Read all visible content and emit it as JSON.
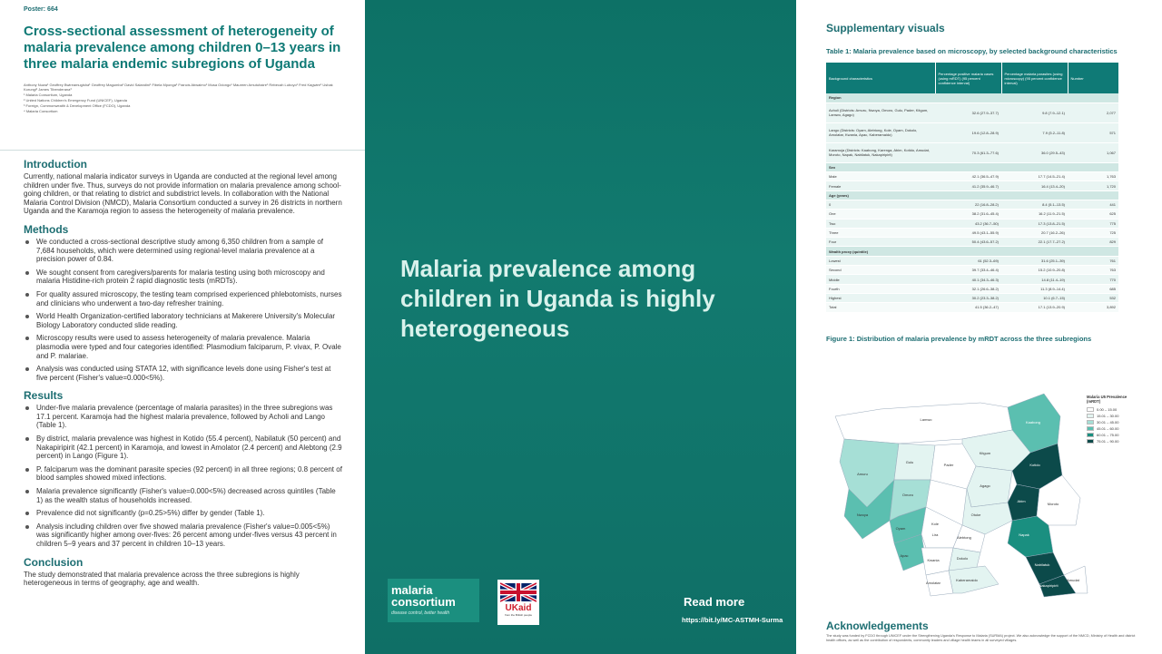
{
  "poster_number": "Poster: 664",
  "title": "Cross-sectional assessment of heterogeneity of malaria prevalence among children 0–13 years in three malaria endemic subregions of Uganda",
  "authors": "Anthony Nuwa¹ Geoffrey Bwireamugisha¹ Geoffrey Magumba¹ David Salandini¹ Fibela Mponga¹ Francis Abwaimo¹ Musa Odongo¹ Maureen Amutuhaire¹ Rebecah Luboyo¹ Fred Kagwire¹ Ushak Korungi² James Tibenderana³",
  "affiliations": [
    "¹ Malaria Consortium, Uganda",
    "² United Nations Children's Emergency Fund (UNICEF), Uganda",
    "³ Foreign, Commonwealth & Development Office (FCDO), Uganda",
    "⁴ Malaria Consortium"
  ],
  "introduction": {
    "heading": "Introduction",
    "text": "Currently, national malaria indicator surveys in Uganda are conducted at the regional level among children under five. Thus, surveys do not provide information on malaria prevalence among school-going children, or that relating to district and subdistrict levels. In collaboration with the National Malaria Control Division (NMCD), Malaria Consortium conducted a survey in 26 districts in northern Uganda and the Karamoja region to assess the heterogeneity of malaria prevalence."
  },
  "methods": {
    "heading": "Methods",
    "items": [
      "We conducted a cross-sectional descriptive study among 6,350 children from a sample of 7,684 households, which were determined using regional-level malaria prevalence at a precision power of 0.84.",
      "We sought consent from caregivers/parents for malaria testing using both microscopy and malaria Histidine-rich protein 2 rapid diagnostic tests (mRDTs).",
      "For quality assured microscopy, the testing team comprised experienced phlebotomists, nurses and clinicians who underwent a two-day refresher training.",
      "World Health Organization-certified laboratory technicians at Makerere University's Molecular Biology Laboratory conducted slide reading.",
      "Microscopy results were used to assess heterogeneity of malaria prevalence. Malaria plasmodia were typed and four categories identified: Plasmodium falciparum, P. vivax, P. Ovale and P. malariae.",
      "Analysis was conducted using STATA 12, with significance levels done using Fisher's test at five percent (Fisher's value=0.000<5%)."
    ]
  },
  "results": {
    "heading": "Results",
    "items": [
      "Under-five malaria prevalence (percentage of malaria parasites) in the three subregions was 17.1 percent. Karamoja had the highest malaria prevalence, followed by Acholi and Lango (Table 1).",
      "By district, malaria prevalence was highest in Kotido (55.4 percent), Nabilatuk (50 percent) and Nakapiripirit (42.1 percent) in Karamoja, and lowest in Amolator (2.4 percent) and Alebtong (2.9 percent) in Lango (Figure 1).",
      "P. falciparum was the dominant parasite species (92 percent) in all three regions; 0.8 percent of blood samples showed mixed infections.",
      "Malaria prevalence significantly (Fisher's value=0.000<5%) decreased across quintiles (Table 1) as the wealth status of households increased.",
      "Prevalence did not significantly (p=0.25>5%) differ by gender (Table 1).",
      "Analysis including children over five showed malaria prevalence (Fisher's value=0.005<5%) was significantly higher among over-fives: 26 percent among under-fives versus 43 percent in children 5–9 years and 37 percent in children 10–13 years."
    ]
  },
  "conclusion": {
    "heading": "Conclusion",
    "text": "The study demonstrated that malaria prevalence across the three subregions is highly heterogeneous in terms of geography, age and wealth."
  },
  "center": {
    "headline": "Malaria prevalence among children in Uganda is highly heterogeneous",
    "logo_line1": "malaria",
    "logo_line2": "consortium",
    "logo_tagline": "disease control, better health",
    "ukaid_text": "UKaid",
    "ukaid_sub": "from the British people",
    "read_more": "Read more",
    "read_more_url": "https://bit.ly/MC-ASTMH-Surma"
  },
  "supplementary": {
    "heading": "Supplementary visuals",
    "table_caption": "Table 1: Malaria prevalence based on microscopy, by selected background characteristics",
    "table_headers": [
      "Background characteristics",
      "Percentage positive malaria cases (using mRDT) (95 percent confidence interval)",
      "Percentage malaria parasites (using microscopy) (95 percent confidence interval)",
      "Number"
    ],
    "table_rows": [
      {
        "type": "section",
        "cells": [
          "Region",
          "",
          "",
          ""
        ]
      },
      {
        "type": "tall",
        "cells": [
          "Acholi (Districts: Amuru, Nwoya, Omoro, Gulu, Pader, Kitgum, Lamwo, Agago)",
          "32.6 (27.9–37.7)",
          "9.8 (7.9–12.1)",
          "2,077"
        ]
      },
      {
        "type": "tall",
        "cells": [
          "Lango (Districts: Oyam, Alebtong, Kole, Oyam, Dokolo, Amolatar, Kwania, Apac, Kaberamaido)",
          "19.6 (12.8–28.9)",
          "7.9 (5.2–11.8)",
          "571"
        ]
      },
      {
        "type": "tall",
        "cells": [
          "Karamoja (Districts: Kaabong, Karenga, Abim, Kotido, Amudat, Moroto, Napak, Nabilatuk, Nakapiripirit)",
          "70.3 (61.3–77.6)",
          "36.0 (29.5–43)",
          "1,067"
        ]
      },
      {
        "type": "section",
        "cells": [
          "Sex",
          "",
          "",
          ""
        ]
      },
      {
        "type": "row",
        "cells": [
          "Male",
          "42.1 (36.5–47.9)",
          "17.7 (14.5–21.4)",
          "1,763"
        ]
      },
      {
        "type": "row",
        "cells": [
          "Female",
          "41.2 (35.9–46.7)",
          "16.4 (13.4–20)",
          "1,720"
        ]
      },
      {
        "type": "section",
        "cells": [
          "Age (years)",
          "",
          "",
          ""
        ]
      },
      {
        "type": "row",
        "cells": [
          "0",
          "22 (16.8–28.2)",
          "8.4 (5.1–13.5)",
          "441"
        ]
      },
      {
        "type": "row",
        "cells": [
          "One",
          "38.2 (31.6–45.4)",
          "16.2 (11.9–21.5)",
          "625"
        ]
      },
      {
        "type": "row",
        "cells": [
          "Two",
          "43.2 (36.7–50)",
          "17.3 (13.8–21.5)",
          "775"
        ]
      },
      {
        "type": "row",
        "cells": [
          "Three",
          "49.5 (43.1–55.9)",
          "20.7 (16.2–26)",
          "725"
        ]
      },
      {
        "type": "row",
        "cells": [
          "Four",
          "50.4 (43.6–57.2)",
          "22.1 (17.7–27.2)",
          "829"
        ]
      },
      {
        "type": "section",
        "cells": [
          "Wealth proxy (quintile)",
          "",
          "",
          ""
        ]
      },
      {
        "type": "row",
        "cells": [
          "Lowest",
          "61 (52.3–69)",
          "31.6 (25.1–39)",
          "761"
        ]
      },
      {
        "type": "row",
        "cells": [
          "Second",
          "39.7 (33.4–46.4)",
          "15.2 (10.9–20.8)",
          "763"
        ]
      },
      {
        "type": "row",
        "cells": [
          "Middle",
          "40.1 (34.3–46.3)",
          "14.8 (11.4–19)",
          "770"
        ]
      },
      {
        "type": "row",
        "cells": [
          "Fourth",
          "32.1 (26.6–38.2)",
          "11.3 (8.9–14.4)",
          "685"
        ]
      },
      {
        "type": "row",
        "cells": [
          "Highest",
          "30.2 (23.3–38.2)",
          "10.1 (6.7–15)",
          "532"
        ]
      },
      {
        "type": "row",
        "cells": [
          "Total",
          "41.5 (36.2–47)",
          "17.1 (13.9–20.9)",
          "3,892"
        ]
      }
    ],
    "figure_caption": "Figure 1: Distribution of malaria prevalence by mRDT across the three subregions",
    "legend_title": "Malaria U5 Prevalence (mRDT)",
    "legend": [
      {
        "label": "0.00 – 15.00",
        "color": "#ffffff"
      },
      {
        "label": "15.01 – 30.00",
        "color": "#e3f4f1"
      },
      {
        "label": "30.01 – 45.00",
        "color": "#a6dfd6"
      },
      {
        "label": "45.01 – 60.00",
        "color": "#5bbfb0"
      },
      {
        "label": "60.01 – 75.00",
        "color": "#1a8f80"
      },
      {
        "label": "75.01 – 90.00",
        "color": "#0c4a4a"
      }
    ],
    "map_labels": [
      "Lamwo",
      "Kaabong",
      "Kitgum",
      "Amuru",
      "Gulu",
      "Pader",
      "Agago",
      "Kotido",
      "Nwoya",
      "Omoro",
      "Abim",
      "Moroto",
      "Oyam",
      "Kole",
      "Otuke",
      "Napak",
      "Apac",
      "Lira",
      "Alebtong",
      "Kwania",
      "Dokolo",
      "Amolatar",
      "Nabilatuk",
      "Nakapiripirit",
      "Kaberamaido",
      "Amudat"
    ]
  },
  "acknowledgements": {
    "heading": "Acknowledgements",
    "text": "The study was funded by FCDO through UNICEF under the Strengthening Uganda's Response to Malaria (SURMA) project. We also acknowledge the support of the NMCD, Ministry of Health and district health offices, as well as the contribution of respondents, community leaders and village health teams in all surveyed villages."
  }
}
